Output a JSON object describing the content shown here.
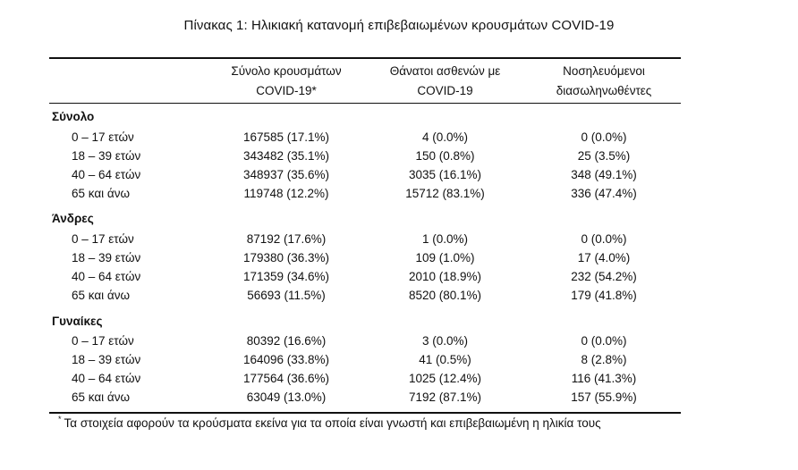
{
  "caption": "Πίνακας 1: Ηλικιακή κατανομή επιβεβαιωμένων κρουσμάτων COVID-19",
  "headers": {
    "col1_line1": "Σύνολο κρουσμάτων",
    "col1_line2": "COVID-19*",
    "col2_line1": "Θάνατοι ασθενών με",
    "col2_line2": "COVID-19",
    "col3_line1": "Νοσηλευόμενοι",
    "col3_line2": "διασωληνωθέντες"
  },
  "sections": [
    {
      "title": "Σύνολο",
      "rows": [
        {
          "age": "0 – 17 ετών",
          "cases": "167585 (17.1%)",
          "deaths": "4 (0.0%)",
          "intubated": "0 (0.0%)"
        },
        {
          "age": "18 – 39 ετών",
          "cases": "343482 (35.1%)",
          "deaths": "150 (0.8%)",
          "intubated": "25 (3.5%)"
        },
        {
          "age": "40 – 64 ετών",
          "cases": "348937 (35.6%)",
          "deaths": "3035 (16.1%)",
          "intubated": "348 (49.1%)"
        },
        {
          "age": "65 και άνω",
          "cases": "119748 (12.2%)",
          "deaths": "15712 (83.1%)",
          "intubated": "336 (47.4%)"
        }
      ]
    },
    {
      "title": "Άνδρες",
      "rows": [
        {
          "age": "0 – 17 ετών",
          "cases": "87192 (17.6%)",
          "deaths": "1 (0.0%)",
          "intubated": "0 (0.0%)"
        },
        {
          "age": "18 – 39 ετών",
          "cases": "179380 (36.3%)",
          "deaths": "109 (1.0%)",
          "intubated": "17 (4.0%)"
        },
        {
          "age": "40 – 64 ετών",
          "cases": "171359 (34.6%)",
          "deaths": "2010 (18.9%)",
          "intubated": "232 (54.2%)"
        },
        {
          "age": "65 και άνω",
          "cases": "56693 (11.5%)",
          "deaths": "8520 (80.1%)",
          "intubated": "179 (41.8%)"
        }
      ]
    },
    {
      "title": "Γυναίκες",
      "rows": [
        {
          "age": "0 – 17 ετών",
          "cases": "80392 (16.6%)",
          "deaths": "3 (0.0%)",
          "intubated": "0 (0.0%)"
        },
        {
          "age": "18 – 39 ετών",
          "cases": "164096 (33.8%)",
          "deaths": "41 (0.5%)",
          "intubated": "8 (2.8%)"
        },
        {
          "age": "40 – 64 ετών",
          "cases": "177564 (36.6%)",
          "deaths": "1025 (12.4%)",
          "intubated": "116 (41.3%)"
        },
        {
          "age": "65 και άνω",
          "cases": "63049 (13.0%)",
          "deaths": "7192 (87.1%)",
          "intubated": "157 (55.9%)"
        }
      ]
    }
  ],
  "footnote": {
    "marker": "*",
    "text": "Τα στοιχεία αφορούν τα κρούσματα εκείνα για τα οποία είναι γνωστή και επιβεβαιωμένη η ηλικία τους"
  }
}
